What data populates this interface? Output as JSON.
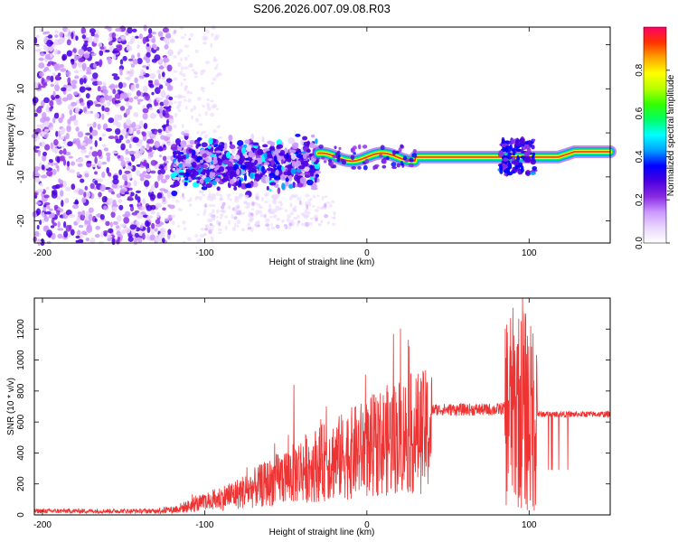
{
  "title": "S206.2026.007.09.08.R03",
  "chart_data": [
    {
      "type": "heatmap",
      "xlabel": "Height of straight line (km)",
      "ylabel": "Frequency (Hz)",
      "xlim": [
        -205,
        150
      ],
      "ylim": [
        -25,
        24
      ],
      "x_ticks": [
        -200,
        -100,
        0,
        100
      ],
      "y_ticks": [
        -20,
        -10,
        0,
        10,
        20
      ],
      "colorbar": {
        "label": "Normalized spectral amplitude",
        "range": [
          0,
          1
        ],
        "ticks": [
          0.0,
          0.2,
          0.4,
          0.6,
          0.8
        ],
        "colormap": [
          "#ffffff",
          "#e9d7ff",
          "#cc99ff",
          "#8a2be2",
          "#4b00e0",
          "#0000ff",
          "#00a0ff",
          "#00ffff",
          "#00ff66",
          "#33ff00",
          "#b5ff00",
          "#ffff00",
          "#ffa500",
          "#ff3300",
          "#ff0066"
        ]
      },
      "features": [
        {
          "description_region": "noise",
          "x_range": [
            -205,
            -120
          ],
          "y_range": [
            -25,
            24
          ],
          "amplitude": 0.1
        },
        {
          "description_region": "scatter",
          "x_range": [
            -120,
            -30
          ],
          "y_range": [
            -15,
            1
          ],
          "amplitude": 0.25
        },
        {
          "description_region": "signal",
          "x_range": [
            -30,
            150
          ],
          "frequency": -5.5,
          "amplitude": 0.95
        }
      ]
    },
    {
      "type": "line",
      "xlabel": "Height of straight line (km)",
      "ylabel": "SNR (10 * v/v)",
      "xlim": [
        -205,
        150
      ],
      "ylim": [
        0,
        1400
      ],
      "x_ticks": [
        -200,
        -100,
        0,
        100
      ],
      "y_ticks": [
        0,
        200,
        400,
        600,
        800,
        1000,
        1200
      ],
      "color": "#ee3333",
      "envelope": [
        {
          "x": -205,
          "y": 30
        },
        {
          "x": -140,
          "y": 30
        },
        {
          "x": -120,
          "y": 40
        },
        {
          "x": -100,
          "y": 100
        },
        {
          "x": -80,
          "y": 170
        },
        {
          "x": -60,
          "y": 260
        },
        {
          "x": -40,
          "y": 370
        },
        {
          "x": -20,
          "y": 450
        },
        {
          "x": 0,
          "y": 540
        },
        {
          "x": 20,
          "y": 640
        },
        {
          "x": 40,
          "y": 680
        },
        {
          "x": 60,
          "y": 680
        },
        {
          "x": 80,
          "y": 680
        },
        {
          "x": 90,
          "y": 700
        },
        {
          "x": 100,
          "y": 650
        },
        {
          "x": 120,
          "y": 650
        },
        {
          "x": 150,
          "y": 650
        }
      ],
      "peaks": [
        {
          "x": -45,
          "y": 840
        },
        {
          "x": -25,
          "y": 700
        },
        {
          "x": 96,
          "y": 1400
        },
        {
          "x": 98,
          "y": 1300
        },
        {
          "x": 101,
          "y": 1220
        },
        {
          "x": 93,
          "y": 1100
        }
      ]
    }
  ]
}
